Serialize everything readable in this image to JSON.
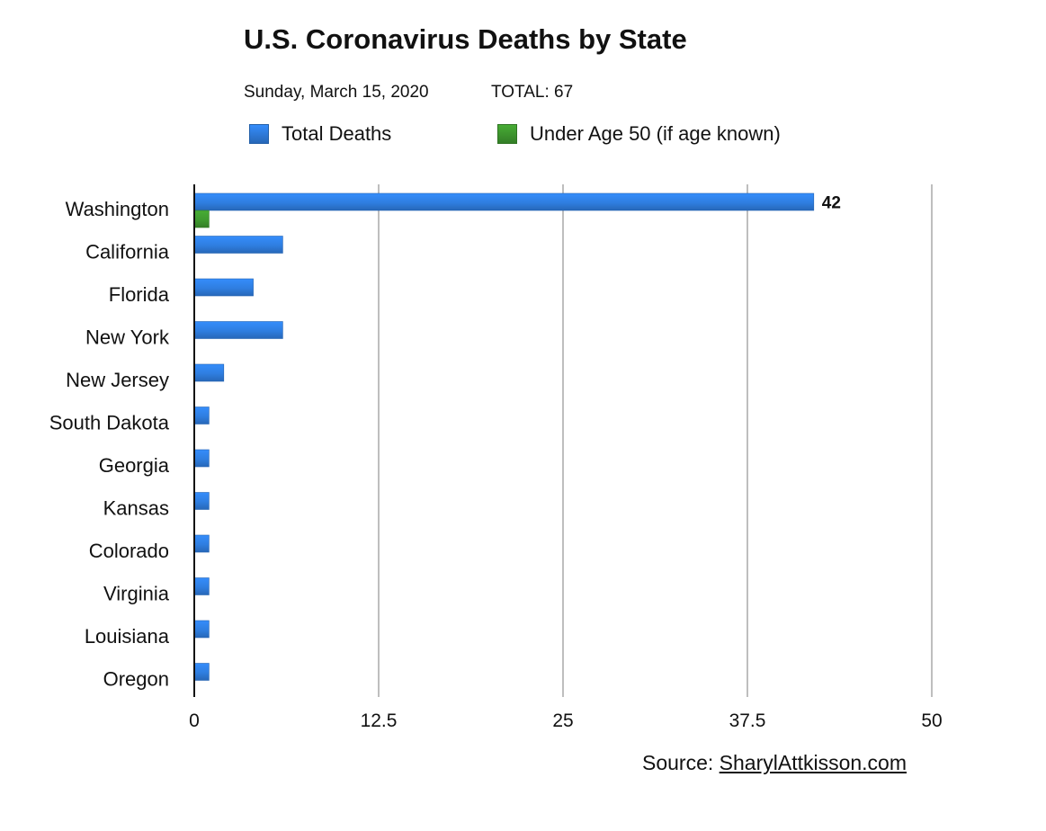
{
  "chart_data": {
    "type": "bar",
    "orientation": "horizontal",
    "title": "U.S. Coronavirus Deaths by State",
    "subtitle_date": "Sunday, March 15, 2020",
    "subtitle_total": "TOTAL: 67",
    "categories": [
      "Washington",
      "California",
      "Florida",
      "New York",
      "New Jersey",
      "South Dakota",
      "Georgia",
      "Kansas",
      "Colorado",
      "Virginia",
      "Louisiana",
      "Oregon"
    ],
    "series": [
      {
        "name": "Total Deaths",
        "color": "#2f7ee0",
        "values": [
          42,
          6,
          4,
          6,
          2,
          1,
          1,
          1,
          1,
          1,
          1,
          1
        ]
      },
      {
        "name": "Under Age 50 (if age known)",
        "color": "#3f9a2f",
        "values": [
          1,
          0,
          0,
          0,
          0,
          0,
          0,
          0,
          0,
          0,
          0,
          0
        ]
      }
    ],
    "data_labels": [
      {
        "series": 0,
        "category": "Washington",
        "text": "42"
      }
    ],
    "xlim": [
      0,
      50
    ],
    "xticks": [
      "0",
      "12.5",
      "25",
      "37.5",
      "50"
    ],
    "xtick_values": [
      0,
      12.5,
      25,
      37.5,
      50
    ],
    "grid": "vertical",
    "legend_position": "top",
    "xlabel": "",
    "ylabel": ""
  },
  "source": {
    "prefix": "Source: ",
    "link_text": "SharylAttkisson.com"
  }
}
